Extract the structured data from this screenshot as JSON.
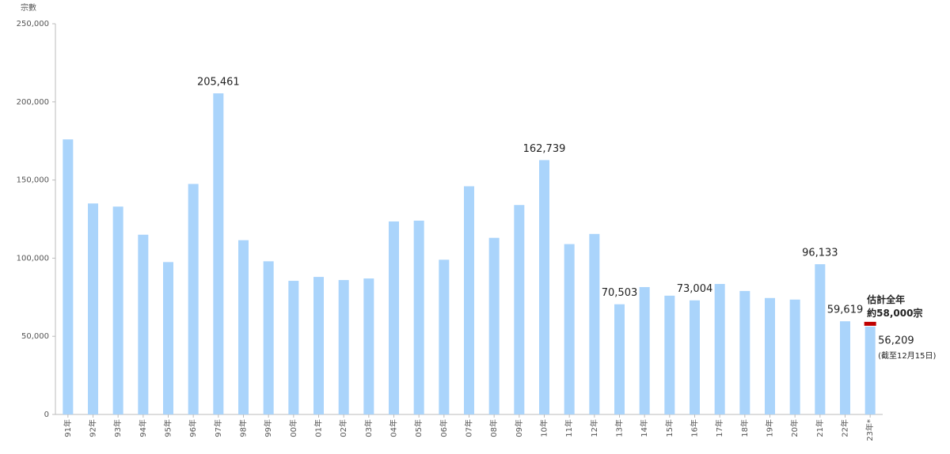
{
  "chart_data": {
    "type": "bar",
    "y_axis_title": "宗數",
    "categories": [
      "91年",
      "92年",
      "93年",
      "94年",
      "95年",
      "96年",
      "97年",
      "98年",
      "99年",
      "00年",
      "01年",
      "02年",
      "03年",
      "04年",
      "05年",
      "06年",
      "07年",
      "08年",
      "09年",
      "10年",
      "11年",
      "12年",
      "13年",
      "14年",
      "15年",
      "16年",
      "17年",
      "18年",
      "19年",
      "20年",
      "21年",
      "22年",
      "23年*"
    ],
    "values": [
      176000,
      135000,
      133000,
      115000,
      97500,
      147500,
      205461,
      111500,
      98000,
      85500,
      88000,
      86000,
      87000,
      123500,
      124000,
      99000,
      146000,
      113000,
      134000,
      162739,
      109000,
      115500,
      70503,
      81500,
      76000,
      73004,
      83500,
      79000,
      74500,
      73500,
      96133,
      59619,
      56209
    ],
    "value_labels": [
      null,
      null,
      null,
      null,
      null,
      null,
      "205,461",
      null,
      null,
      null,
      null,
      null,
      null,
      null,
      null,
      null,
      null,
      null,
      null,
      "162,739",
      null,
      null,
      "70,503",
      null,
      null,
      "73,004",
      null,
      null,
      null,
      null,
      "96,133",
      "59,619",
      "56,209"
    ],
    "color": "#aad4fb",
    "ylim": [
      0,
      250000
    ],
    "yticks": [
      0,
      {
        "value": 50000,
        "label": "50,000"
      },
      {
        "value": 100000,
        "label": "100,000"
      },
      {
        "value": 150000,
        "label": "150,000"
      },
      {
        "value": 200000,
        "label": "200,000"
      },
      {
        "value": 250000,
        "label": "250,000"
      }
    ],
    "estimate": {
      "value": 58000,
      "label_line1": "估計全年",
      "label_line2": "約58,000宗",
      "color": "#c00000"
    },
    "note": "(截至12月15日)"
  }
}
